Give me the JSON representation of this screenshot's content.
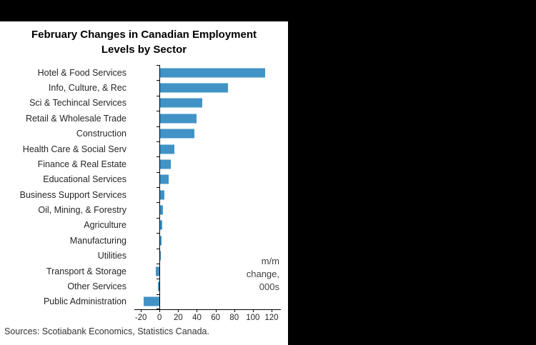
{
  "window": {
    "background": "#000000",
    "panel_background": "#ffffff"
  },
  "chart_data": {
    "type": "bar",
    "orientation": "horizontal",
    "title": "February Changes in Canadian Employment Levels by Sector",
    "title_line1": "February Changes in Canadian Employment",
    "title_line2": "Levels by Sector",
    "categories": [
      "Hotel & Food Services",
      "Info, Culture, & Rec",
      "Sci & Techincal Services",
      "Retail & Wholesale Trade",
      "Construction",
      "Health Care & Social Serv",
      "Finance & Real Estate",
      "Educational Services",
      "Business Support Services",
      "Oil, Mining, & Forestry",
      "Agriculture",
      "Manufacturing",
      "Utilities",
      "Transport & Storage",
      "Other Services",
      "Public Administration"
    ],
    "values": [
      113,
      73,
      46,
      40,
      37,
      16,
      12,
      10,
      5,
      4,
      3,
      2,
      1,
      -4,
      -2,
      -17
    ],
    "xlim": [
      -20,
      120
    ],
    "x_ticks": [
      -20,
      0,
      20,
      40,
      60,
      80,
      100,
      120
    ],
    "grid": false,
    "legend_position": "none",
    "bar_color": "#4193C6",
    "axis_color": "#000000",
    "annotation_lines": [
      "m/m",
      "change,",
      "000s"
    ],
    "source": "Sources: Scotiabank Economics, Statistics Canada."
  }
}
